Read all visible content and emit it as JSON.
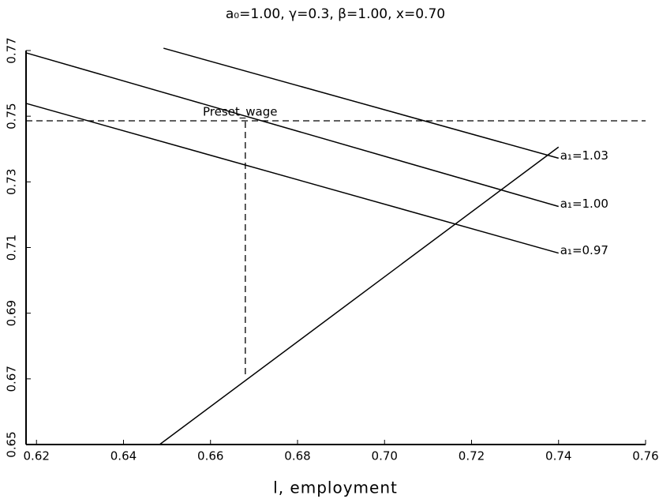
{
  "chart_data": {
    "type": "line",
    "title": "a₀=1.00, γ=0.3, β=1.00, x=0.70",
    "x_label": "l, employment",
    "xlim": [
      0.6176,
      0.76
    ],
    "ylim": [
      0.65,
      0.77
    ],
    "xticks": [
      0.62,
      0.64,
      0.66,
      0.68,
      {
        "value": 0.7,
        "label": "0.70"
      },
      0.72,
      0.74,
      0.76
    ],
    "yticks": [
      0.65,
      0.67,
      0.69,
      0.71,
      0.73,
      0.75,
      0.77
    ],
    "series": [
      {
        "name": "a₁=1.03",
        "color": "#000000",
        "x": [
          0.6492,
          0.74
        ],
        "values": [
          0.7707,
          0.7372
        ]
      },
      {
        "name": "a₁=1.00",
        "color": "#000000",
        "x": [
          0.6176,
          0.74
        ],
        "values": [
          0.7693,
          0.7225
        ]
      },
      {
        "name": "a₁=0.97",
        "color": "#000000",
        "x": [
          0.6176,
          0.74
        ],
        "values": [
          0.7539,
          0.7083
        ]
      },
      {
        "color": "#000000",
        "x": [
          0.6483,
          0.74
        ],
        "values": [
          0.65,
          0.7406
        ]
      }
    ],
    "hlines": [
      {
        "label": "Preset_wage",
        "y": 0.7486
      }
    ],
    "vlines": [
      {
        "x": 0.668,
        "y": [
          0.6714,
          0.7486
        ]
      }
    ]
  }
}
